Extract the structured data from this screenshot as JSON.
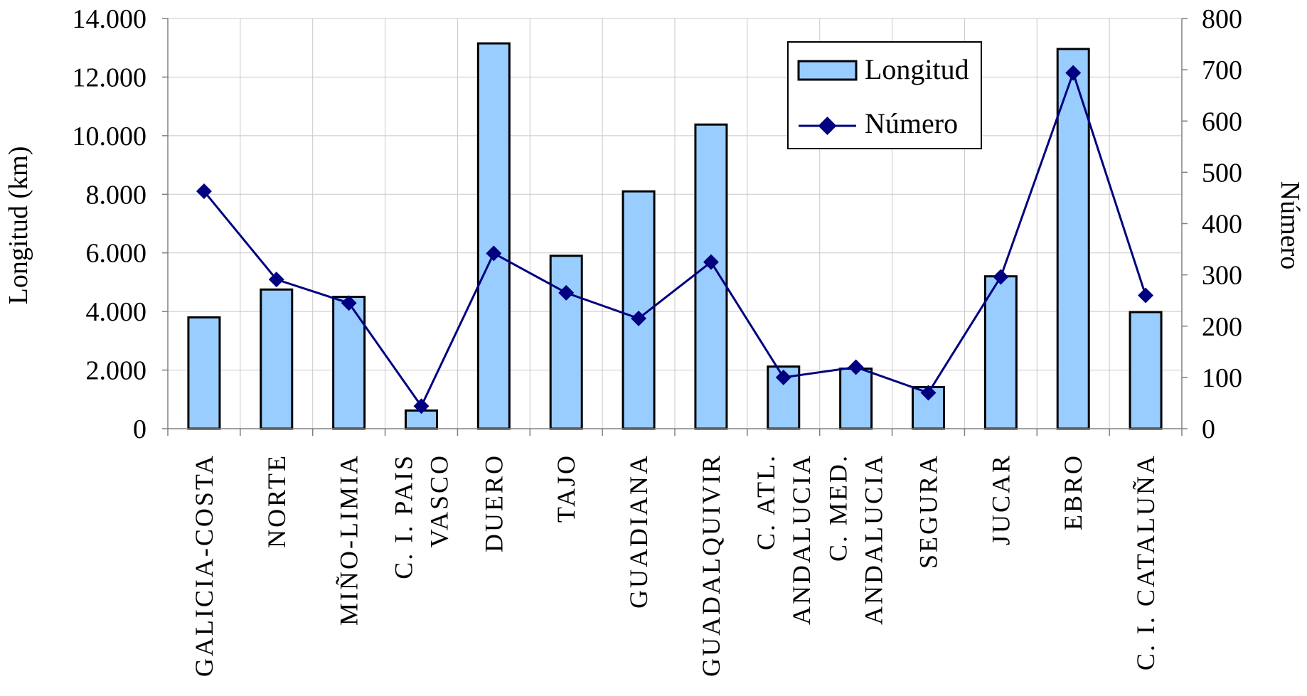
{
  "colors": {
    "bar_fill": "#99ccff",
    "bar_stroke": "#000000",
    "line": "#000080",
    "marker": "#000080",
    "grid": "#c8c8c8"
  },
  "chart_data": {
    "type": "bar",
    "categories": [
      [
        "GALICIA-COSTA"
      ],
      [
        "NORTE"
      ],
      [
        "MIÑO-LIMIA"
      ],
      [
        "C. I. PAIS",
        "VASCO"
      ],
      [
        "DUERO"
      ],
      [
        "TAJO"
      ],
      [
        "GUADIANA"
      ],
      [
        "GUADALQUIVIR"
      ],
      [
        "C. ATL.",
        "ANDALUCIA"
      ],
      [
        "C. MED.",
        "ANDALUCIA"
      ],
      [
        "SEGURA"
      ],
      [
        "JUCAR"
      ],
      [
        "EBRO"
      ],
      [
        "C. I. CATALUÑA"
      ]
    ],
    "series": [
      {
        "name": "Longitud",
        "kind": "bar",
        "axis": "left",
        "values": [
          3800,
          4750,
          4500,
          620,
          13150,
          5900,
          8100,
          10380,
          2120,
          2050,
          1420,
          5200,
          12960,
          3980
        ]
      },
      {
        "name": "Número",
        "kind": "line",
        "axis": "right",
        "marker": "diamond",
        "values": [
          463,
          291,
          245,
          44,
          342,
          265,
          215,
          325,
          100,
          120,
          70,
          296,
          694,
          260
        ]
      }
    ],
    "ylabel": "Longitud (km)",
    "y2label": "Número",
    "ylim": [
      0,
      14000
    ],
    "y2lim": [
      0,
      800
    ],
    "yticks": [
      {
        "value": 0,
        "label": "0"
      },
      {
        "value": 2000,
        "label": "2.000"
      },
      {
        "value": 4000,
        "label": "4.000"
      },
      {
        "value": 6000,
        "label": "6.000"
      },
      {
        "value": 8000,
        "label": "8.000"
      },
      {
        "value": 10000,
        "label": "10.000"
      },
      {
        "value": 12000,
        "label": "12.000"
      },
      {
        "value": 14000,
        "label": "14.000"
      }
    ],
    "y2ticks": [
      {
        "value": 0,
        "label": "0"
      },
      {
        "value": 100,
        "label": "100"
      },
      {
        "value": 200,
        "label": "200"
      },
      {
        "value": 300,
        "label": "300"
      },
      {
        "value": 400,
        "label": "400"
      },
      {
        "value": 500,
        "label": "500"
      },
      {
        "value": 600,
        "label": "600"
      },
      {
        "value": 700,
        "label": "700"
      },
      {
        "value": 800,
        "label": "800"
      }
    ],
    "grid": true,
    "legend_position": "top-right"
  }
}
